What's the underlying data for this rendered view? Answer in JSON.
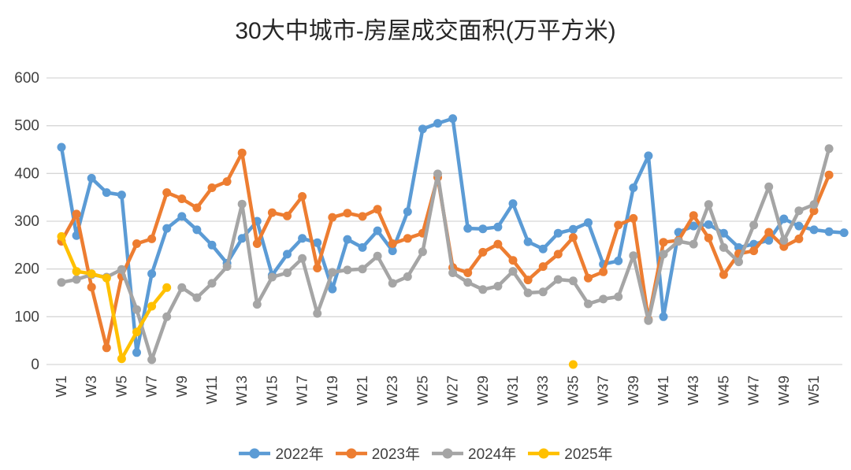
{
  "title": "30大中城市-房屋成交面积(万平方米)",
  "legend": {
    "items": [
      {
        "label": "2022年",
        "color": "#5B9BD5"
      },
      {
        "label": "2023年",
        "color": "#ED7D31"
      },
      {
        "label": "2024年",
        "color": "#A5A5A5"
      },
      {
        "label": "2025年",
        "color": "#FFC000"
      }
    ]
  },
  "y_axis": {
    "tick_labels": [
      "0",
      "100",
      "200",
      "300",
      "400",
      "500",
      "600"
    ],
    "min": 0,
    "max": 600
  },
  "x_axis": {
    "visible_labels": [
      "W1",
      "W3",
      "W5",
      "W7",
      "W9",
      "W11",
      "W13",
      "W15",
      "W17",
      "W19",
      "W21",
      "W23",
      "W25",
      "W27",
      "W29",
      "W31",
      "W33",
      "W35",
      "W37",
      "W39",
      "W41",
      "W43",
      "W45",
      "W47",
      "W49",
      "W51"
    ]
  },
  "chart_data": {
    "type": "line",
    "title": "30大中城市-房屋成交面积(万平方米)",
    "xlabel": "",
    "ylabel": "",
    "ylim": [
      0,
      600
    ],
    "grid": "horizontal",
    "legend_position": "bottom",
    "categories": [
      "W1",
      "W2",
      "W3",
      "W4",
      "W5",
      "W6",
      "W7",
      "W8",
      "W9",
      "W10",
      "W11",
      "W12",
      "W13",
      "W14",
      "W15",
      "W16",
      "W17",
      "W18",
      "W19",
      "W20",
      "W21",
      "W22",
      "W23",
      "W24",
      "W25",
      "W26",
      "W27",
      "W28",
      "W29",
      "W30",
      "W31",
      "W32",
      "W33",
      "W34",
      "W35",
      "W36",
      "W37",
      "W38",
      "W39",
      "W40",
      "W41",
      "W42",
      "W43",
      "W44",
      "W45",
      "W46",
      "W47",
      "W48",
      "W49",
      "W50",
      "W51",
      "W52",
      "W53"
    ],
    "series": [
      {
        "name": "2022年",
        "color": "#5B9BD5",
        "values": [
          455,
          270,
          390,
          360,
          355,
          25,
          190,
          285,
          310,
          282,
          250,
          212,
          264,
          300,
          187,
          231,
          264,
          255,
          158,
          262,
          245,
          280,
          238,
          320,
          493,
          505,
          515,
          285,
          284,
          288,
          337,
          257,
          242,
          275,
          283,
          297,
          210,
          217,
          370,
          437,
          100,
          277,
          290,
          293,
          275,
          245,
          252,
          260,
          305,
          290,
          282,
          278,
          276
        ]
      },
      {
        "name": "2023年",
        "color": "#ED7D31",
        "values": [
          258,
          315,
          162,
          35,
          185,
          253,
          263,
          360,
          347,
          328,
          370,
          383,
          443,
          253,
          318,
          311,
          352,
          202,
          308,
          317,
          310,
          325,
          253,
          264,
          275,
          392,
          203,
          192,
          235,
          252,
          218,
          177,
          205,
          231,
          266,
          181,
          194,
          292,
          306,
          94,
          256,
          260,
          312,
          265,
          188,
          232,
          238,
          277,
          247,
          263,
          322,
          397,
          null
        ]
      },
      {
        "name": "2024年",
        "color": "#A5A5A5",
        "values": [
          172,
          178,
          188,
          183,
          199,
          115,
          10,
          100,
          161,
          140,
          170,
          205,
          336,
          126,
          183,
          192,
          222,
          107,
          193,
          198,
          200,
          227,
          170,
          184,
          236,
          399,
          192,
          172,
          157,
          164,
          195,
          150,
          152,
          178,
          175,
          127,
          137,
          142,
          228,
          92,
          231,
          258,
          252,
          335,
          245,
          215,
          292,
          372,
          260,
          322,
          335,
          452,
          null
        ]
      },
      {
        "name": "2025年",
        "color": "#FFC000",
        "values": [
          268,
          195,
          190,
          181,
          12,
          68,
          122,
          161,
          null,
          null,
          null,
          null,
          null,
          null,
          null,
          null,
          null,
          null,
          null,
          null,
          null,
          null,
          null,
          null,
          null,
          null,
          null,
          null,
          null,
          null,
          null,
          null,
          null,
          null,
          0,
          null,
          null,
          null,
          null,
          null,
          null,
          null,
          null,
          null,
          null,
          null,
          null,
          null,
          null,
          null,
          null,
          null,
          null
        ]
      }
    ]
  },
  "style": {
    "grid_color": "#D6D6D6",
    "tick_label_color": "#404040",
    "title_color": "#262626"
  }
}
